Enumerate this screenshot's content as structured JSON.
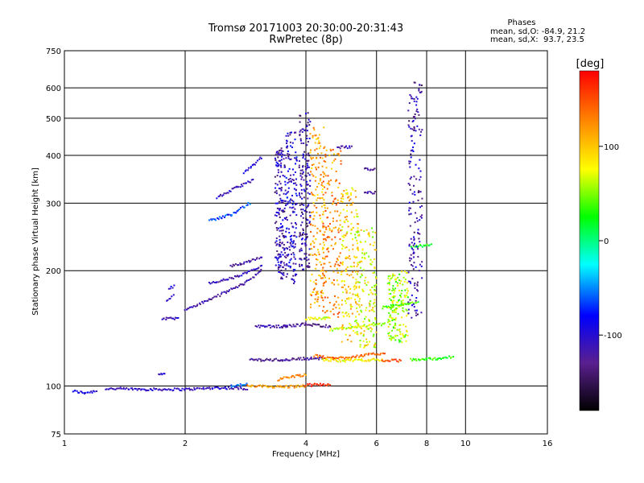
{
  "chart_data": {
    "type": "scatter",
    "title": "Tromsø 20171003 20:30:00-20:31:43",
    "subtitle": "RwPretec (8p)",
    "xlabel": "Frequency [MHz]",
    "ylabel": "Stationary phase Virtual Height [km]",
    "x_scale": "log",
    "y_scale": "log",
    "xlim": [
      1,
      16
    ],
    "ylim": [
      75,
      750
    ],
    "x_ticks": [
      "1",
      "2",
      "4",
      "6",
      "8",
      "10",
      "16"
    ],
    "x_tick_values": [
      1,
      2,
      4,
      6,
      8,
      10,
      16
    ],
    "y_ticks": [
      "750",
      "600",
      "500",
      "400",
      "300",
      "200",
      "100",
      "75"
    ],
    "y_tick_values": [
      750,
      600,
      500,
      400,
      300,
      200,
      100,
      75
    ],
    "grid": true,
    "colorbar": {
      "label": "[deg]",
      "range": [
        -180,
        180
      ],
      "ticks": [
        "100",
        "0",
        "-100"
      ],
      "tick_values": [
        100,
        0,
        -100
      ]
    },
    "stats": {
      "heading": "Phases",
      "line1": "mean, sd,O: -84.9, 21.2",
      "line2": "mean, sd,X:  93.7, 23.5"
    },
    "traces": [
      {
        "f": [
          1.05,
          1.12,
          1.2
        ],
        "h": [
          97,
          96,
          97
        ],
        "phase": -95
      },
      {
        "f": [
          1.27,
          1.6,
          2.0,
          2.4,
          2.85
        ],
        "h": [
          98.5,
          98,
          98,
          99,
          98.5
        ],
        "phase": -110
      },
      {
        "f": [
          2.6,
          2.85
        ],
        "h": [
          100,
          101
        ],
        "phase": -60
      },
      {
        "f": [
          2.85,
          3.5,
          4.0
        ],
        "h": [
          100,
          99.5,
          100
        ],
        "phase": 120
      },
      {
        "f": [
          4.0,
          4.6
        ],
        "h": [
          100.5,
          101
        ],
        "phase": 160
      },
      {
        "f": [
          3.4,
          3.7,
          4.0
        ],
        "h": [
          104,
          106,
          107
        ],
        "phase": 125
      },
      {
        "f": [
          1.72,
          1.78
        ],
        "h": [
          107,
          108
        ],
        "phase": -100
      },
      {
        "f": [
          1.75,
          1.92
        ],
        "h": [
          150,
          150
        ],
        "phase": -105
      },
      {
        "f": [
          1.8,
          1.87
        ],
        "h": [
          168,
          172
        ],
        "phase": -100
      },
      {
        "f": [
          1.82,
          1.88
        ],
        "h": [
          180,
          182
        ],
        "phase": -95
      },
      {
        "f": [
          2.0,
          2.3,
          2.8,
          3.1
        ],
        "h": [
          158,
          168,
          185,
          200
        ],
        "phase": -120
      },
      {
        "f": [
          2.3,
          2.7,
          3.1
        ],
        "h": [
          185,
          193,
          205
        ],
        "phase": -110
      },
      {
        "f": [
          2.6,
          2.9,
          3.1
        ],
        "h": [
          205,
          212,
          218
        ],
        "phase": -125
      },
      {
        "f": [
          2.3,
          2.6,
          2.9
        ],
        "h": [
          270,
          280,
          300
        ],
        "phase": -65
      },
      {
        "f": [
          2.4,
          2.7,
          2.95
        ],
        "h": [
          310,
          330,
          345
        ],
        "phase": -110
      },
      {
        "f": [
          2.8,
          2.95,
          3.1
        ],
        "h": [
          360,
          375,
          395
        ],
        "phase": -100
      },
      {
        "f": [
          2.9,
          3.5
        ],
        "h": [
          117,
          117
        ],
        "phase": -130
      },
      {
        "f": [
          3.5,
          4.0,
          4.4
        ],
        "h": [
          117,
          118,
          118
        ],
        "phase": -125
      },
      {
        "f": [
          4.4,
          5.0,
          5.5,
          6.2
        ],
        "h": [
          117,
          116.5,
          117,
          117
        ],
        "phase": 80
      },
      {
        "f": [
          6.2,
          6.9
        ],
        "h": [
          116.5,
          116.5
        ],
        "phase": 155
      },
      {
        "f": [
          7.3,
          8.5,
          9.3
        ],
        "h": [
          117,
          118,
          119
        ],
        "phase": 30
      },
      {
        "f": [
          4.2,
          4.7,
          5.5,
          6.3
        ],
        "h": [
          120,
          118,
          120,
          122
        ],
        "phase": 140
      },
      {
        "f": [
          3.0,
          3.6
        ],
        "h": [
          143,
          143
        ],
        "phase": -120
      },
      {
        "f": [
          3.5,
          4.0,
          4.6
        ],
        "h": [
          143,
          145,
          143
        ],
        "phase": -130
      },
      {
        "f": [
          4.0,
          4.6
        ],
        "h": [
          150,
          150
        ],
        "phase": 70
      },
      {
        "f": [
          4.6,
          5.4,
          6.3
        ],
        "h": [
          140,
          143,
          145
        ],
        "phase": 60
      },
      {
        "f": [
          6.2,
          7.0,
          7.6
        ],
        "h": [
          160,
          163,
          165
        ],
        "phase": 40
      },
      {
        "f": [
          7.3,
          7.7,
          8.2
        ],
        "h": [
          230,
          232,
          233
        ],
        "phase": 25
      },
      {
        "f": [
          5.6,
          5.95
        ],
        "h": [
          320,
          320
        ],
        "phase": -125
      },
      {
        "f": [
          5.6,
          5.95
        ],
        "h": [
          368,
          368
        ],
        "phase": -130
      },
      {
        "f": [
          4.8,
          5.2
        ],
        "h": [
          420,
          420
        ],
        "phase": -115
      }
    ],
    "columns": [
      {
        "f": [
          3.35,
          3.55
        ],
        "h": [
          190,
          420
        ],
        "phase": -115
      },
      {
        "f": [
          3.55,
          3.8
        ],
        "h": [
          185,
          460
        ],
        "phase": -105
      },
      {
        "f": [
          3.85,
          4.1
        ],
        "h": [
          200,
          520
        ],
        "phase": -120
      },
      {
        "f": [
          4.1,
          4.45
        ],
        "h": [
          160,
          480
        ],
        "phase": 115
      },
      {
        "f": [
          4.4,
          4.9
        ],
        "h": [
          150,
          430
        ],
        "phase": 125
      },
      {
        "f": [
          4.9,
          5.4
        ],
        "h": [
          130,
          330
        ],
        "phase": 95
      },
      {
        "f": [
          5.3,
          6.0
        ],
        "h": [
          125,
          260
        ],
        "phase": 75
      },
      {
        "f": [
          6.4,
          7.2
        ],
        "h": [
          130,
          200
        ],
        "phase": 60
      },
      {
        "f": [
          7.2,
          7.8
        ],
        "h": [
          150,
          640
        ],
        "phase": -115
      }
    ]
  }
}
